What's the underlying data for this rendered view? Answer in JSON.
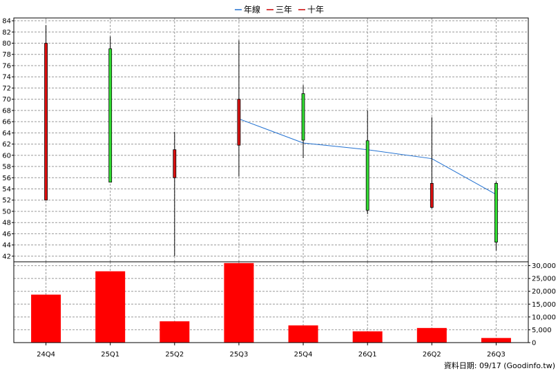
{
  "legend": [
    {
      "label": "年線",
      "color": "#1f6fd0"
    },
    {
      "label": "三年",
      "color": "#cc0000"
    },
    {
      "label": "十年",
      "color": "#cc0000"
    }
  ],
  "footer": "資料日期: 09/17  (Goodinfo.tw)",
  "colors": {
    "up": "#33dd33",
    "down": "#dd1111",
    "volume": "#ff0000",
    "ma_line": "#1f6fd0",
    "grid": "#999999"
  },
  "chart_data": [
    {
      "type": "candlestick",
      "categories": [
        "24Q4",
        "25Q1",
        "25Q2",
        "25Q3",
        "25Q4",
        "26Q1",
        "26Q2",
        "26Q3"
      ],
      "ohlc": [
        {
          "open": 52,
          "high": 83.2,
          "low": 52,
          "close": 80,
          "direction": "down"
        },
        {
          "open": 55.2,
          "high": 81.2,
          "low": 55.2,
          "close": 79,
          "direction": "up"
        },
        {
          "open": 61,
          "high": 64.2,
          "low": 42,
          "close": 56,
          "direction": "down"
        },
        {
          "open": 70,
          "high": 80.5,
          "low": 56.2,
          "close": 61.8,
          "direction": "down"
        },
        {
          "open": 62.7,
          "high": 72.5,
          "low": 59.5,
          "close": 71,
          "direction": "up"
        },
        {
          "open": 62.6,
          "high": 68,
          "low": 49.5,
          "close": 50.2,
          "direction": "up"
        },
        {
          "open": 55,
          "high": 66.8,
          "low": 50.5,
          "close": 50.7,
          "direction": "down"
        },
        {
          "open": 55,
          "high": 55.3,
          "low": 43,
          "close": 44.5,
          "direction": "up"
        }
      ],
      "series": [
        {
          "name": "年線",
          "values": [
            null,
            null,
            null,
            66.5,
            62.2,
            61,
            59.4,
            53
          ]
        }
      ],
      "ylim": [
        41,
        84.5
      ],
      "yticks": [
        42,
        44,
        46,
        48,
        50,
        52,
        54,
        56,
        58,
        60,
        62,
        64,
        66,
        68,
        70,
        72,
        74,
        76,
        78,
        80,
        82,
        84
      ],
      "grid": true,
      "legend_position": "top-center"
    },
    {
      "type": "bar",
      "categories": [
        "24Q4",
        "25Q1",
        "25Q2",
        "25Q3",
        "25Q4",
        "26Q1",
        "26Q2",
        "26Q3"
      ],
      "values": [
        18700,
        27800,
        8300,
        31000,
        6700,
        4400,
        5700,
        1800
      ],
      "ylim": [
        0,
        31500
      ],
      "yticks": [
        0,
        5000,
        10000,
        15000,
        20000,
        25000,
        30000
      ],
      "ytick_labels": [
        "0",
        "5,000",
        "10,000",
        "15,000",
        "20,000",
        "25,000",
        "30,000"
      ],
      "grid": true
    }
  ]
}
